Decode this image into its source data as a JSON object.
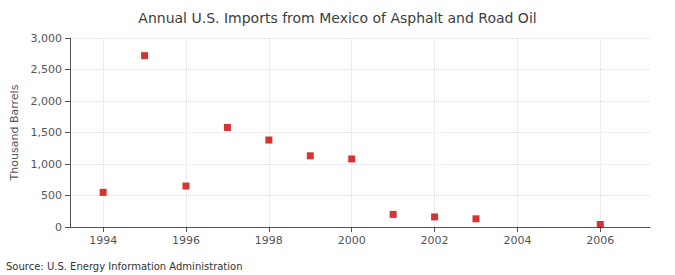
{
  "chart_data": {
    "type": "scatter",
    "title": "Annual U.S. Imports from Mexico of Asphalt and Road Oil",
    "ylabel": "Thousand Barrels",
    "annotations": [
      "Source: U.S. Energy Information Administration"
    ],
    "x": [
      1994,
      1995,
      1996,
      1997,
      1998,
      1999,
      2000,
      2001,
      2002,
      2003,
      2006
    ],
    "values": [
      550,
      2720,
      650,
      1580,
      1380,
      1130,
      1080,
      200,
      160,
      130,
      40
    ],
    "color": "#cc0000",
    "marker": "square",
    "xlim": [
      1993.2,
      2007.2
    ],
    "ylim": [
      0,
      3000
    ],
    "xticks": [
      1994,
      1996,
      1998,
      2000,
      2002,
      2004,
      2006
    ],
    "yticks": [
      0,
      500,
      {
        "value": 1000,
        "label": "1,000"
      },
      {
        "value": 1500,
        "label": "1,500"
      },
      {
        "value": 2000,
        "label": "2,000"
      },
      {
        "value": 2500,
        "label": "2,500"
      },
      {
        "value": 3000,
        "label": "3,000"
      }
    ],
    "grid": true
  }
}
